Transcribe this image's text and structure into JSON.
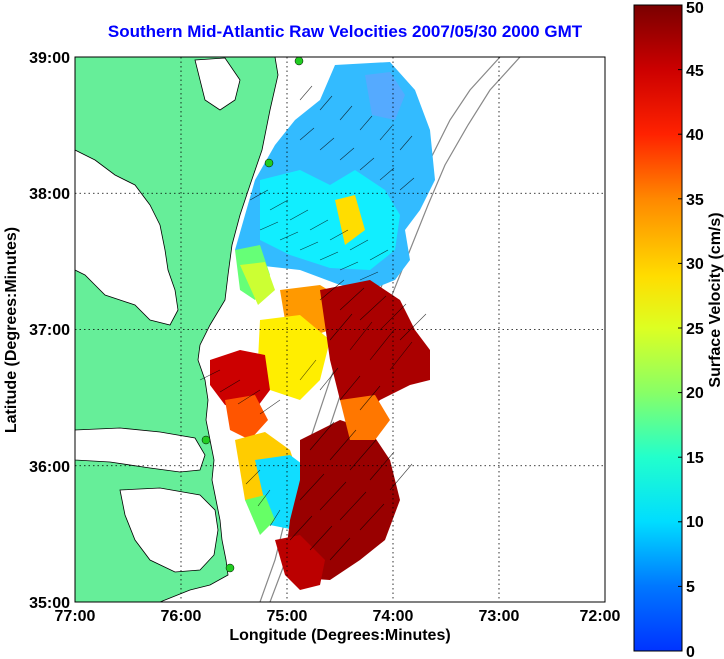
{
  "title": "Southern Mid-Atlantic Raw Velocities 2007/05/30 2000 GMT",
  "axes": {
    "xlabel": "Longitude (Degrees:Minutes)",
    "ylabel": "Latitude (Degrees:Minutes)",
    "xticks": [
      "77:00",
      "76:00",
      "75:00",
      "74:00",
      "73:00",
      "72:00"
    ],
    "yticks": [
      "39:00",
      "38:00",
      "37:00",
      "36:00",
      "35:00"
    ]
  },
  "colorbar": {
    "label": "Surface Velocity (cm/s)",
    "ticks": [
      "0",
      "5",
      "10",
      "15",
      "20",
      "25",
      "30",
      "35",
      "40",
      "45",
      "50"
    ],
    "min": 0,
    "max": 50
  },
  "colors": {
    "land": "#66ee99",
    "title": "#0000ff",
    "station": "#22cc22"
  }
}
